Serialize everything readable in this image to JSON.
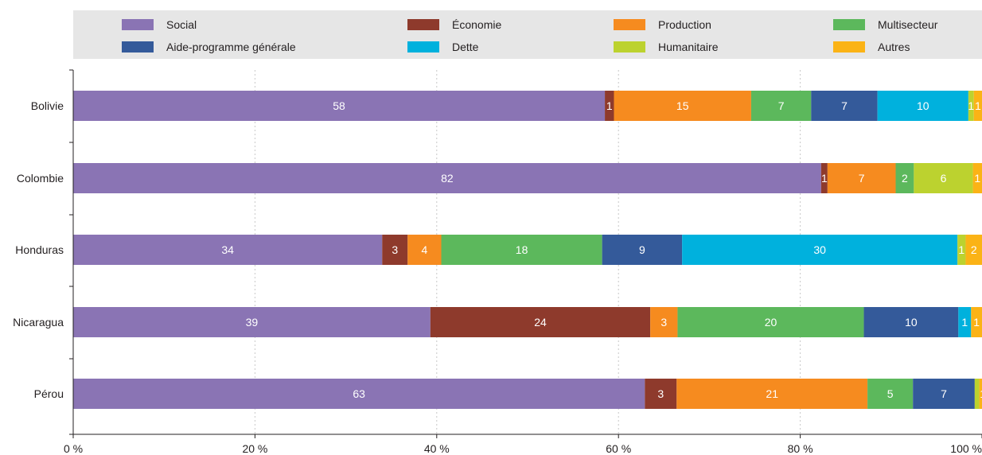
{
  "chart_data": {
    "type": "bar",
    "orientation": "horizontal",
    "stacked": true,
    "title": "",
    "xlabel": "",
    "ylabel": "",
    "xlim": [
      0,
      100
    ],
    "x_ticks": [
      {
        "value": 0,
        "label": "0 %"
      },
      {
        "value": 20,
        "label": "20 %"
      },
      {
        "value": 40,
        "label": "40 %"
      },
      {
        "value": 60,
        "label": "60 %"
      },
      {
        "value": 80,
        "label": "80 %"
      },
      {
        "value": 100,
        "label": "100 %"
      }
    ],
    "grid": "vertical-dashed",
    "legend_position": "top",
    "categories": [
      "Bolivie",
      "Colombie",
      "Honduras",
      "Nicaragua",
      "Pérou"
    ],
    "series": [
      {
        "name": "Social",
        "color": "#8a74b4",
        "values": [
          58.5,
          82.3,
          34.0,
          39.3,
          62.9
        ],
        "labels": [
          "58",
          "82",
          "34",
          "39",
          "63"
        ]
      },
      {
        "name": "Économie",
        "color": "#8e3a2c",
        "values": [
          1.0,
          0.7,
          2.8,
          24.2,
          3.5
        ],
        "labels": [
          "1",
          "1",
          "3",
          "24",
          "3"
        ]
      },
      {
        "name": "Production",
        "color": "#f68b1f",
        "values": [
          15.1,
          7.5,
          3.7,
          3.0,
          21.0
        ],
        "labels": [
          "15",
          "7",
          "4",
          "3",
          "21"
        ]
      },
      {
        "name": "Multisecteur",
        "color": "#5cb85c",
        "values": [
          6.6,
          2.0,
          17.7,
          20.5,
          5.0
        ],
        "labels": [
          "7",
          "2",
          "18",
          "20",
          "5"
        ]
      },
      {
        "name": "Aide-programme générale",
        "color": "#345a9a",
        "values": [
          7.3,
          0,
          8.8,
          10.4,
          6.8
        ],
        "labels": [
          "7",
          "",
          "9",
          "10",
          "7"
        ]
      },
      {
        "name": "Dette",
        "color": "#00b1dd",
        "values": [
          10.0,
          0,
          30.3,
          1.4,
          0
        ],
        "labels": [
          "10",
          "",
          "30",
          "1",
          ""
        ]
      },
      {
        "name": "Humanitaire",
        "color": "#bcd22f",
        "values": [
          0.6,
          6.5,
          0.9,
          0,
          0.5
        ],
        "labels": [
          "1",
          "6",
          "1",
          "",
          ""
        ]
      },
      {
        "name": "Autres",
        "color": "#fbb316",
        "values": [
          0.9,
          1.0,
          1.8,
          1.2,
          0.8
        ],
        "labels": [
          "1",
          "1",
          "2",
          "1",
          "1"
        ]
      }
    ]
  }
}
